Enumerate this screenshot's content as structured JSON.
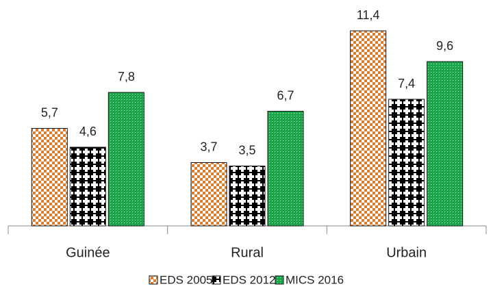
{
  "chart_data": {
    "type": "bar",
    "categories": [
      "Guinée",
      "Rural",
      "Urbain"
    ],
    "series": [
      {
        "name": "EDS 2005",
        "color": "#e07b2a",
        "values": [
          5.7,
          3.7,
          11.4
        ],
        "value_labels": [
          "5,7",
          "3,7",
          "11,4"
        ]
      },
      {
        "name": "EDS 2012",
        "color": "#000000",
        "values": [
          4.6,
          3.5,
          7.4
        ],
        "value_labels": [
          "4,6",
          "3,5",
          "7,4"
        ]
      },
      {
        "name": "MICS 2016",
        "color": "#1aa64a",
        "values": [
          7.8,
          6.7,
          9.6
        ],
        "value_labels": [
          "7,8",
          "6,7",
          "9,6"
        ]
      }
    ]
  }
}
